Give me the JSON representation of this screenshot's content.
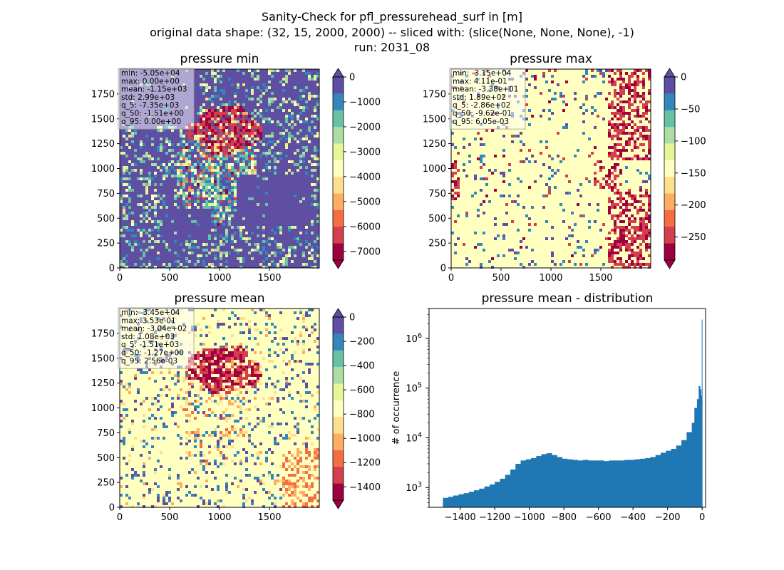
{
  "suptitle": {
    "line1": "Sanity-Check for pfl_pressurehead_surf in [m]",
    "line2": "original data shape: (32, 15, 2000, 2000) -- sliced with: (slice(None, None, None), -1)",
    "line3": "run: 2031_08"
  },
  "colormap": [
    "#9e0142",
    "#d53e4f",
    "#f46d43",
    "#fdae61",
    "#fee08b",
    "#ffffbf",
    "#e6f598",
    "#abdda4",
    "#66c2a5",
    "#3288bd",
    "#5e4fa2"
  ],
  "panels": [
    {
      "id": "min",
      "title": "pressure min",
      "background_color": "#5e4fa2",
      "x_ticks": [
        "0",
        "500",
        "1000",
        "1500"
      ],
      "y_ticks": [
        "0",
        "250",
        "500",
        "750",
        "1000",
        "1250",
        "1500",
        "1750"
      ],
      "stats": [
        "min: -5.05e+04",
        "max: 0.00e+00",
        "mean: -1.15e+03",
        "std: 2.99e+03",
        "q_5: -7.35e+03",
        "q_50: -1.51e+00",
        "q_95: 0.00e+00"
      ],
      "colorbar": {
        "ticks": [
          "0",
          "−1000",
          "−2000",
          "−3000",
          "−4000",
          "−5000",
          "−6000",
          "−7000"
        ],
        "range": [
          -7350,
          0
        ]
      }
    },
    {
      "id": "max",
      "title": "pressure max",
      "background_color": "#ffffbf",
      "x_ticks": [
        "0",
        "500",
        "1000",
        "1500"
      ],
      "y_ticks": [
        "0",
        "250",
        "500",
        "750",
        "1000",
        "1250",
        "1500",
        "1750"
      ],
      "stats": [
        "min: -3.15e+04",
        "max: 4.11e-01",
        "mean: -3.38e+01",
        "std: 1.89e+02",
        "q_5: -2.86e+02",
        "q_50: -9.62e-01",
        "q_95: 6.05e-03"
      ],
      "colorbar": {
        "ticks": [
          "0",
          "−50",
          "−100",
          "−150",
          "−200",
          "−250"
        ],
        "range": [
          -286,
          0
        ]
      }
    },
    {
      "id": "mean",
      "title": "pressure mean",
      "background_color": "#ffffbf",
      "x_ticks": [
        "0",
        "500",
        "1000",
        "1500"
      ],
      "y_ticks": [
        "0",
        "250",
        "500",
        "750",
        "1000",
        "1250",
        "1500",
        "1750"
      ],
      "stats": [
        "min: -3.45e+04",
        "max: 3.53e-01",
        "mean: -3.04e+02",
        "std: 1.08e+03",
        "q_5: -1.51e+03",
        "q_50: -1.27e+00",
        "q_95: 2.56e-03"
      ],
      "colorbar": {
        "ticks": [
          "0",
          "−200",
          "−400",
          "−600",
          "−800",
          "−1000",
          "−1200",
          "−1400"
        ],
        "range": [
          -1510,
          0
        ]
      }
    }
  ],
  "histogram": {
    "title": "pressure mean - distribution",
    "ylabel": "# of occurrence",
    "x_ticks": [
      "−1400",
      "−1200",
      "−1000",
      "−800",
      "−600",
      "−400",
      "−200",
      "0"
    ],
    "y_ticks": [
      "10",
      "10",
      "10",
      "10"
    ],
    "y_tick_exponents": [
      "3",
      "4",
      "5",
      "6"
    ],
    "bar_color": "#1f77b4"
  },
  "chart_data": [
    {
      "type": "heatmap",
      "title": "pressure min",
      "xlim": [
        0,
        2000
      ],
      "ylim": [
        0,
        2000
      ],
      "colorbar_range": [
        -7350,
        0
      ],
      "colorbar_ticks": [
        0,
        -1000,
        -2000,
        -3000,
        -4000,
        -5000,
        -6000,
        -7000
      ]
    },
    {
      "type": "heatmap",
      "title": "pressure max",
      "xlim": [
        0,
        2000
      ],
      "ylim": [
        0,
        2000
      ],
      "colorbar_range": [
        -286,
        0
      ],
      "colorbar_ticks": [
        0,
        -50,
        -100,
        -150,
        -200,
        -250
      ]
    },
    {
      "type": "heatmap",
      "title": "pressure mean",
      "xlim": [
        0,
        2000
      ],
      "ylim": [
        0,
        2000
      ],
      "colorbar_range": [
        -1510,
        0
      ],
      "colorbar_ticks": [
        0,
        -200,
        -400,
        -600,
        -800,
        -1000,
        -1200,
        -1400
      ]
    },
    {
      "type": "bar",
      "title": "pressure mean - distribution",
      "xlabel": "",
      "ylabel": "# of occurrence",
      "y_scale": "log",
      "xlim": [
        -1580,
        20
      ],
      "ylim": [
        400,
        4000000
      ],
      "x": [
        -1500,
        -1470,
        -1440,
        -1410,
        -1380,
        -1350,
        -1320,
        -1290,
        -1260,
        -1230,
        -1200,
        -1170,
        -1140,
        -1110,
        -1080,
        -1050,
        -1020,
        -990,
        -960,
        -930,
        -900,
        -870,
        -840,
        -810,
        -780,
        -750,
        -720,
        -690,
        -660,
        -630,
        -600,
        -570,
        -540,
        -510,
        -480,
        -450,
        -420,
        -390,
        -360,
        -330,
        -300,
        -270,
        -240,
        -210,
        -180,
        -150,
        -120,
        -90,
        -60,
        -45,
        -30,
        -20,
        -12,
        -6,
        -2
      ],
      "values": [
        620,
        650,
        690,
        730,
        770,
        820,
        880,
        950,
        1050,
        1150,
        1300,
        1500,
        1800,
        2300,
        3000,
        3500,
        3700,
        3900,
        4300,
        4700,
        4900,
        4500,
        4100,
        3800,
        3700,
        3600,
        3500,
        3600,
        3500,
        3500,
        3500,
        3400,
        3500,
        3500,
        3500,
        3600,
        3600,
        3700,
        3800,
        3900,
        4100,
        4500,
        5000,
        5500,
        6000,
        7000,
        9000,
        13000,
        20000,
        40000,
        60000,
        110000,
        95000,
        70000,
        2400000
      ]
    }
  ]
}
